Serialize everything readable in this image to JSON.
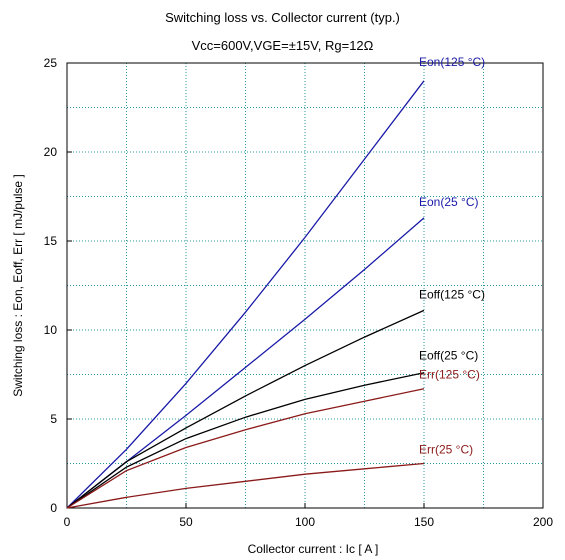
{
  "title": "Switching loss  vs.  Collector current  (typ.)",
  "subtitle": "Vcc=600V,VGE=±15V, Rg=12Ω",
  "chart_data": {
    "type": "line",
    "xlabel": "Collector current  :  Ic  [ A ]",
    "ylabel": "Switching loss  :  Eon, Eoff, Err  [ mJ/pulse ]",
    "xlim": [
      0,
      200
    ],
    "ylim": [
      0,
      25
    ],
    "xticks": [
      0,
      50,
      100,
      150,
      200
    ],
    "yticks": [
      0,
      5,
      10,
      15,
      20,
      25
    ],
    "grid": true,
    "series": [
      {
        "name": "Eon(125 °C)",
        "color": "#1a1aa8",
        "x": [
          0,
          25,
          50,
          75,
          100,
          125,
          150
        ],
        "y": [
          0,
          3.3,
          7.0,
          11.0,
          15.2,
          19.6,
          24.0
        ]
      },
      {
        "name": "Eon(25 °C)",
        "color": "#1a1aa8",
        "x": [
          0,
          25,
          50,
          75,
          100,
          125,
          150
        ],
        "y": [
          0,
          2.6,
          5.2,
          7.9,
          10.6,
          13.4,
          16.3
        ]
      },
      {
        "name": "Eoff(125 °C)",
        "color": "#000000",
        "x": [
          0,
          25,
          50,
          75,
          100,
          125,
          150
        ],
        "y": [
          0,
          2.6,
          4.5,
          6.3,
          8.0,
          9.6,
          11.1
        ]
      },
      {
        "name": "Eoff(25 °C)",
        "color": "#000000",
        "x": [
          0,
          25,
          50,
          75,
          100,
          125,
          150
        ],
        "y": [
          0,
          2.3,
          3.9,
          5.1,
          6.1,
          6.9,
          7.6
        ]
      },
      {
        "name": "Err(125 °C)",
        "color": "#8b1a1a",
        "x": [
          0,
          25,
          50,
          75,
          100,
          125,
          150
        ],
        "y": [
          0,
          2.1,
          3.4,
          4.4,
          5.3,
          6.0,
          6.7
        ]
      },
      {
        "name": "Err(25 °C)",
        "color": "#8b1a1a",
        "x": [
          0,
          25,
          50,
          75,
          100,
          125,
          150
        ],
        "y": [
          0,
          0.6,
          1.1,
          1.5,
          1.9,
          2.2,
          2.5
        ]
      }
    ]
  }
}
